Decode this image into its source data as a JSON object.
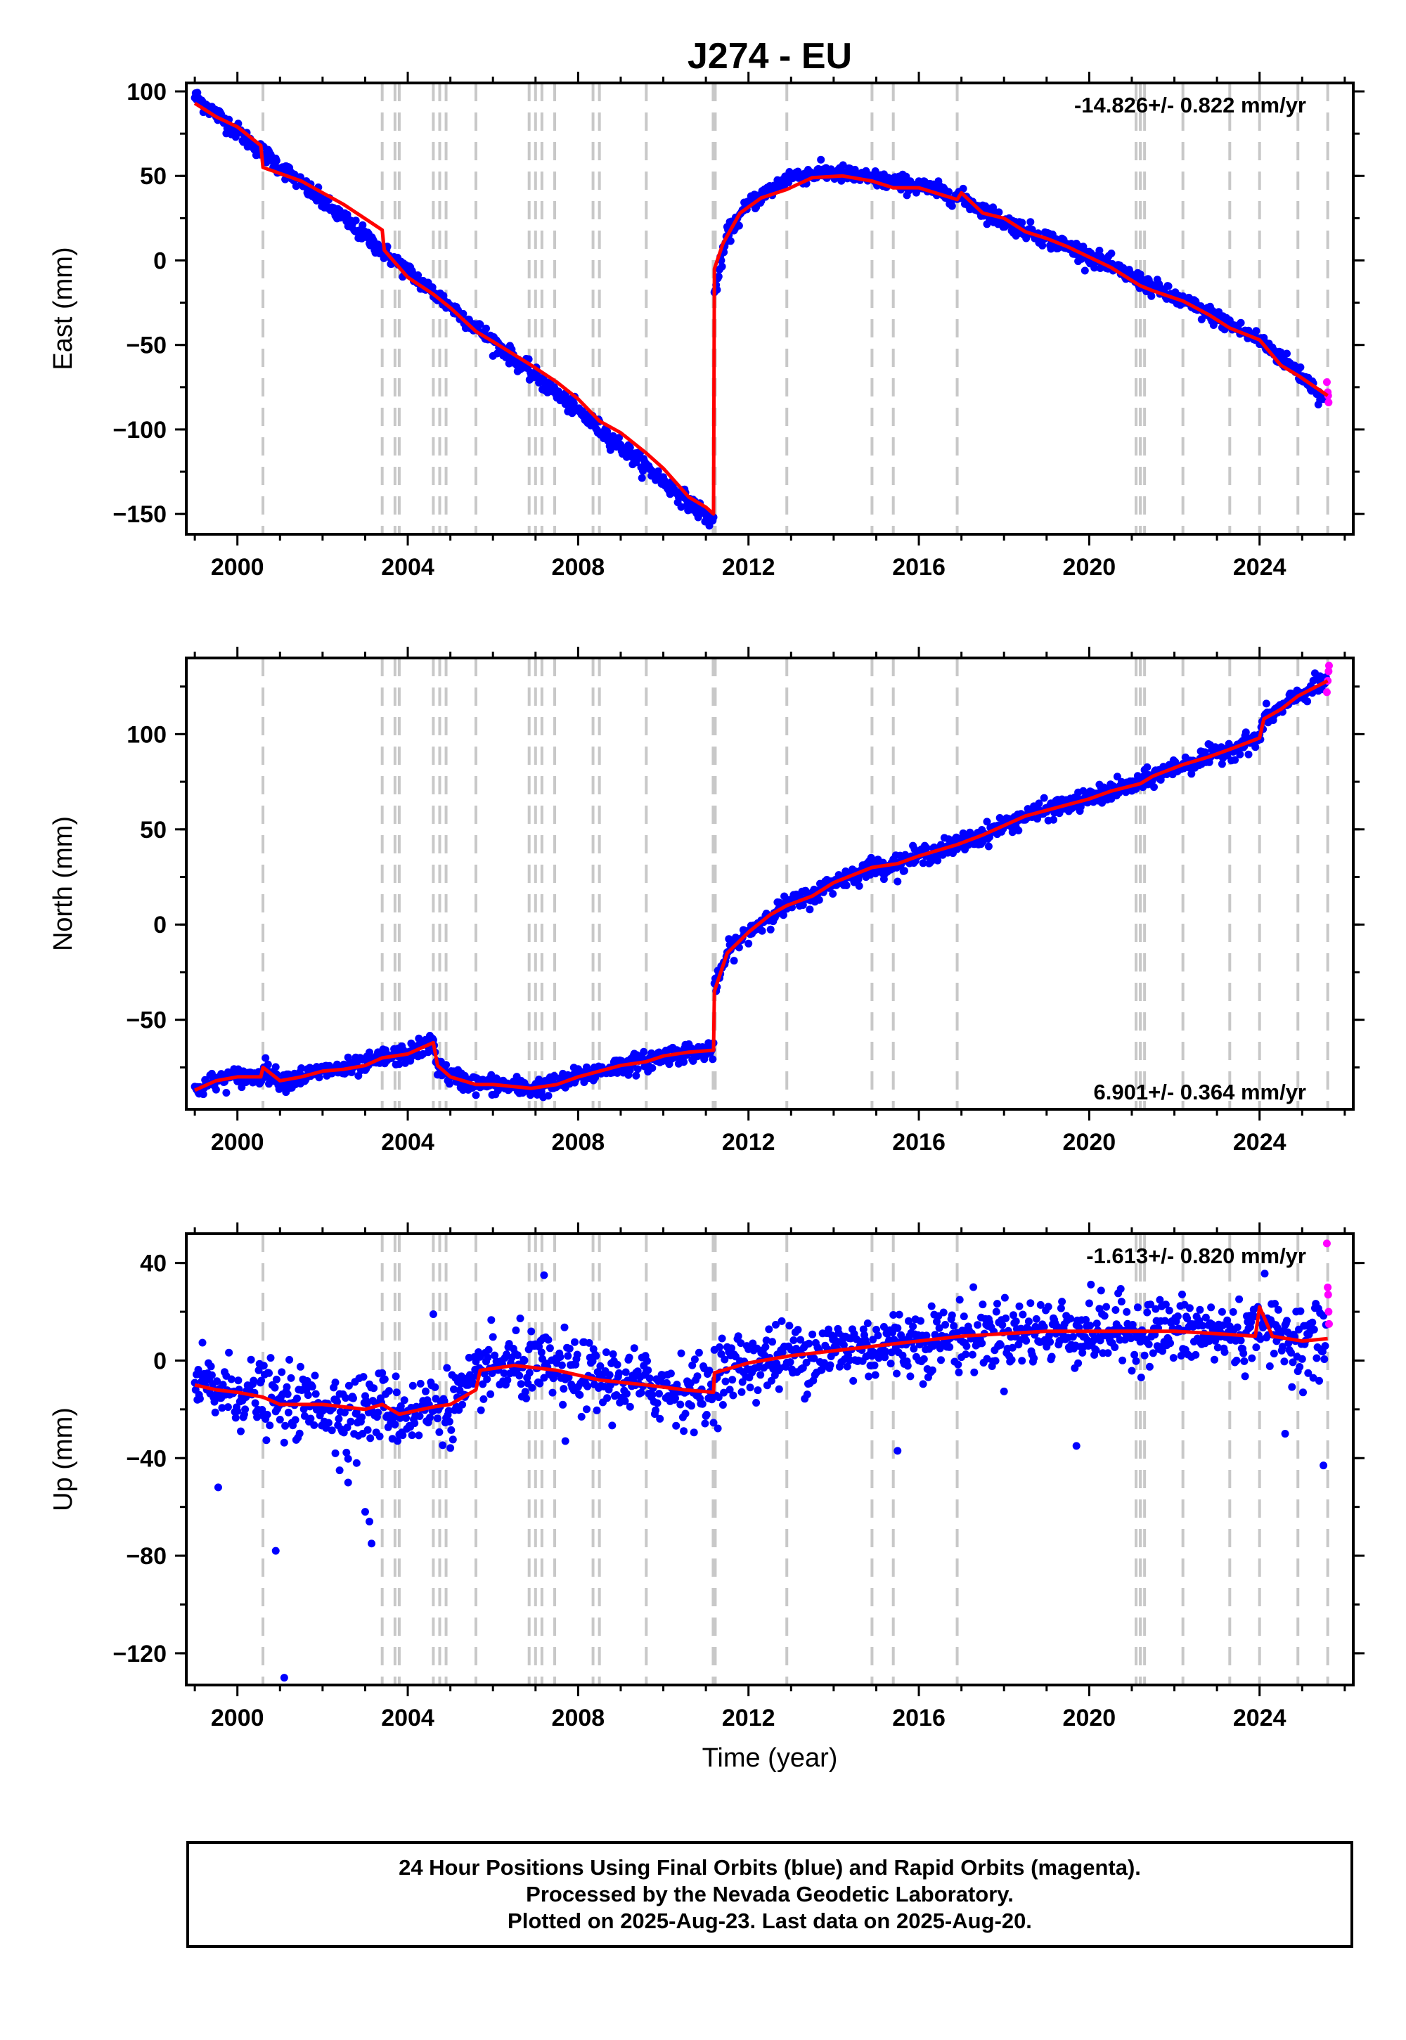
{
  "title": "J274 - EU",
  "x_axis_label": "Time (year)",
  "colors": {
    "final_orbits": "#0000ff",
    "rapid_orbits": "#ff00ff",
    "model": "#ff0000",
    "event_lines": "#c8c8c8"
  },
  "footer": {
    "line1": "24 Hour Positions Using Final Orbits (blue) and Rapid Orbits (magenta).",
    "line2": "Processed by the Nevada Geodetic Laboratory.",
    "line3": "Plotted on 2025-Aug-23. Last data on 2025-Aug-20."
  },
  "chart_data": [
    {
      "type": "scatter",
      "component": "east",
      "ylabel": "East (mm)",
      "rate": "-14.826+/- 0.822 mm/yr",
      "rate_position": "top-right",
      "xlim": [
        1998.8,
        2026.2
      ],
      "ylim": [
        -162,
        105
      ],
      "xticks": [
        2000,
        2004,
        2008,
        2012,
        2016,
        2020,
        2024
      ],
      "yticks": [
        -150,
        -100,
        -50,
        0,
        50,
        100
      ],
      "event_lines_x": [
        2000.6,
        2003.4,
        2003.7,
        2003.8,
        2004.6,
        2004.75,
        2004.9,
        2005.6,
        2006.85,
        2007.0,
        2007.15,
        2007.45,
        2008.35,
        2008.5,
        2009.6,
        2011.17,
        2011.22,
        2012.9,
        2014.9,
        2015.4,
        2016.9,
        2021.1,
        2021.2,
        2021.3,
        2022.2,
        2023.3,
        2024.0,
        2024.9,
        2025.6
      ],
      "model_points": [
        [
          1999.0,
          93
        ],
        [
          1999.5,
          85
        ],
        [
          2000.0,
          79
        ],
        [
          2000.55,
          68
        ],
        [
          2000.6,
          55
        ],
        [
          2001.5,
          47
        ],
        [
          2002.5,
          33
        ],
        [
          2003.4,
          18
        ],
        [
          2003.45,
          6
        ],
        [
          2004.0,
          -10
        ],
        [
          2004.6,
          -20
        ],
        [
          2005.0,
          -28
        ],
        [
          2005.6,
          -42
        ],
        [
          2006.0,
          -48
        ],
        [
          2006.9,
          -62
        ],
        [
          2007.5,
          -72
        ],
        [
          2008.0,
          -82
        ],
        [
          2008.5,
          -95
        ],
        [
          2009.0,
          -102
        ],
        [
          2009.6,
          -114
        ],
        [
          2010.0,
          -123
        ],
        [
          2010.6,
          -140
        ],
        [
          2011.0,
          -146
        ],
        [
          2011.18,
          -150
        ],
        [
          2011.2,
          -5
        ],
        [
          2011.4,
          10
        ],
        [
          2011.8,
          28
        ],
        [
          2012.3,
          37
        ],
        [
          2012.9,
          42
        ],
        [
          2013.5,
          49
        ],
        [
          2014.2,
          50
        ],
        [
          2014.9,
          47
        ],
        [
          2015.4,
          43
        ],
        [
          2016.0,
          43
        ],
        [
          2016.9,
          36
        ],
        [
          2017.0,
          40
        ],
        [
          2017.5,
          28
        ],
        [
          2018.0,
          25
        ],
        [
          2018.5,
          17
        ],
        [
          2019.0,
          13
        ],
        [
          2019.5,
          8
        ],
        [
          2020.0,
          2
        ],
        [
          2020.5,
          -4
        ],
        [
          2021.2,
          -15
        ],
        [
          2021.5,
          -18
        ],
        [
          2022.2,
          -24
        ],
        [
          2022.8,
          -32
        ],
        [
          2023.3,
          -40
        ],
        [
          2024.0,
          -47
        ],
        [
          2024.5,
          -62
        ],
        [
          2024.9,
          -68
        ],
        [
          2025.6,
          -80
        ]
      ],
      "final_points_trend": [
        [
          1999.0,
          97
        ],
        [
          2011.18,
          -155
        ],
        [
          2011.2,
          -20
        ],
        [
          2011.5,
          15
        ],
        [
          2012.0,
          33
        ],
        [
          2013.0,
          50
        ],
        [
          2014.0,
          52
        ],
        [
          2015.0,
          48
        ],
        [
          2016.0,
          44
        ],
        [
          2017.0,
          37
        ],
        [
          2018.0,
          23
        ],
        [
          2019.0,
          13
        ],
        [
          2020.0,
          3
        ],
        [
          2021.0,
          -10
        ],
        [
          2022.0,
          -22
        ],
        [
          2023.0,
          -34
        ],
        [
          2024.0,
          -47
        ],
        [
          2025.0,
          -68
        ],
        [
          2025.6,
          -84
        ]
      ],
      "noise_mm": 2.5,
      "rapid_points": [
        [
          2025.58,
          -72
        ],
        [
          2025.6,
          -78
        ],
        [
          2025.61,
          -80
        ],
        [
          2025.62,
          -84
        ]
      ]
    },
    {
      "type": "scatter",
      "component": "north",
      "ylabel": "North (mm)",
      "rate": "6.901+/- 0.364 mm/yr",
      "rate_position": "bottom-right",
      "xlim": [
        1998.8,
        2026.2
      ],
      "ylim": [
        -97,
        140
      ],
      "xticks": [
        2000,
        2004,
        2008,
        2012,
        2016,
        2020,
        2024
      ],
      "yticks": [
        -50,
        0,
        50,
        100
      ],
      "model_points": [
        [
          1999.0,
          -87
        ],
        [
          1999.5,
          -82
        ],
        [
          2000.0,
          -80
        ],
        [
          2000.55,
          -80
        ],
        [
          2000.6,
          -75
        ],
        [
          2001.0,
          -82
        ],
        [
          2001.5,
          -80
        ],
        [
          2002.0,
          -77
        ],
        [
          2002.5,
          -76
        ],
        [
          2003.0,
          -74
        ],
        [
          2003.4,
          -70
        ],
        [
          2004.0,
          -68
        ],
        [
          2004.6,
          -62
        ],
        [
          2004.7,
          -74
        ],
        [
          2005.0,
          -80
        ],
        [
          2005.6,
          -84
        ],
        [
          2006.0,
          -84
        ],
        [
          2006.9,
          -86
        ],
        [
          2007.5,
          -84
        ],
        [
          2008.0,
          -80
        ],
        [
          2008.5,
          -77
        ],
        [
          2009.0,
          -74
        ],
        [
          2009.6,
          -72
        ],
        [
          2010.0,
          -69
        ],
        [
          2010.6,
          -67
        ],
        [
          2011.18,
          -66
        ],
        [
          2011.2,
          -35
        ],
        [
          2011.5,
          -15
        ],
        [
          2012.0,
          -4
        ],
        [
          2012.5,
          5
        ],
        [
          2012.9,
          10
        ],
        [
          2013.5,
          15
        ],
        [
          2014.0,
          22
        ],
        [
          2014.9,
          30
        ],
        [
          2015.5,
          32
        ],
        [
          2016.0,
          36
        ],
        [
          2016.9,
          42
        ],
        [
          2017.5,
          47
        ],
        [
          2018.0,
          52
        ],
        [
          2018.5,
          57
        ],
        [
          2019.0,
          60
        ],
        [
          2019.5,
          63
        ],
        [
          2020.0,
          66
        ],
        [
          2020.5,
          70
        ],
        [
          2021.2,
          74
        ],
        [
          2021.5,
          78
        ],
        [
          2022.2,
          84
        ],
        [
          2022.8,
          88
        ],
        [
          2023.3,
          92
        ],
        [
          2024.0,
          98
        ],
        [
          2024.1,
          108
        ],
        [
          2024.5,
          113
        ],
        [
          2024.9,
          120
        ],
        [
          2025.6,
          128
        ]
      ],
      "noise_mm": 2.5,
      "rapid_points": [
        [
          2025.58,
          122
        ],
        [
          2025.6,
          128
        ],
        [
          2025.62,
          133
        ],
        [
          2025.63,
          136
        ]
      ]
    },
    {
      "type": "scatter",
      "component": "up",
      "ylabel": "Up (mm)",
      "rate": "-1.613+/- 0.820 mm/yr",
      "rate_position": "top-right",
      "xlim": [
        1998.8,
        2026.2
      ],
      "ylim": [
        -133,
        52
      ],
      "xticks": [
        2000,
        2004,
        2008,
        2012,
        2016,
        2020,
        2024
      ],
      "yticks": [
        -120,
        -80,
        -40,
        0,
        40
      ],
      "model_points": [
        [
          1999.0,
          -10
        ],
        [
          1999.5,
          -12
        ],
        [
          2000.0,
          -13
        ],
        [
          2000.6,
          -15
        ],
        [
          2001.0,
          -18
        ],
        [
          2002.0,
          -18
        ],
        [
          2003.0,
          -20
        ],
        [
          2003.4,
          -18
        ],
        [
          2003.8,
          -22
        ],
        [
          2004.6,
          -19
        ],
        [
          2005.0,
          -18
        ],
        [
          2005.6,
          -12
        ],
        [
          2005.7,
          -4
        ],
        [
          2006.5,
          -2
        ],
        [
          2007.5,
          -4
        ],
        [
          2008.5,
          -8
        ],
        [
          2009.6,
          -10
        ],
        [
          2010.5,
          -12
        ],
        [
          2011.18,
          -13
        ],
        [
          2011.2,
          -5
        ],
        [
          2012.0,
          -1
        ],
        [
          2013.0,
          2
        ],
        [
          2014.0,
          4
        ],
        [
          2015.0,
          6
        ],
        [
          2016.0,
          8
        ],
        [
          2017.0,
          10
        ],
        [
          2018.0,
          11
        ],
        [
          2019.0,
          12
        ],
        [
          2020.0,
          12
        ],
        [
          2021.0,
          12
        ],
        [
          2022.0,
          12
        ],
        [
          2023.0,
          11
        ],
        [
          2023.9,
          10
        ],
        [
          2024.0,
          22
        ],
        [
          2024.3,
          10
        ],
        [
          2025.0,
          8
        ],
        [
          2025.6,
          9
        ]
      ],
      "noise_mm": 7,
      "outliers": [
        [
          1999.55,
          -52
        ],
        [
          2000.9,
          -78
        ],
        [
          2001.1,
          -130
        ],
        [
          2002.3,
          -38
        ],
        [
          2002.4,
          -45
        ],
        [
          2002.6,
          -50
        ],
        [
          2002.8,
          -42
        ],
        [
          2003.0,
          -62
        ],
        [
          2003.1,
          -66
        ],
        [
          2003.15,
          -75
        ],
        [
          2004.6,
          19
        ],
        [
          2007.2,
          35
        ],
        [
          2007.7,
          -33
        ],
        [
          2015.5,
          -37
        ],
        [
          2019.7,
          -35
        ],
        [
          2024.6,
          -30
        ],
        [
          2025.5,
          -43
        ]
      ],
      "rapid_points": [
        [
          2025.58,
          48
        ],
        [
          2025.6,
          30
        ],
        [
          2025.61,
          27
        ],
        [
          2025.62,
          20
        ],
        [
          2025.63,
          15
        ]
      ]
    }
  ]
}
